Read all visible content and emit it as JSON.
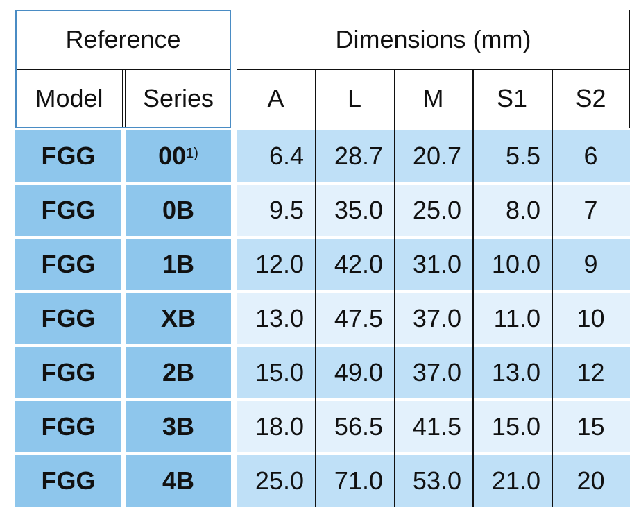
{
  "header": {
    "reference": "Reference",
    "dimensions": "Dimensions (mm)",
    "model": "Model",
    "series": "Series",
    "columns": [
      "A",
      "L",
      "M",
      "S1",
      "S2"
    ]
  },
  "rows": [
    {
      "model": "FGG",
      "series": "00",
      "note": "1)",
      "values": [
        "6.4",
        "28.7",
        "20.7",
        "5.5",
        "6"
      ]
    },
    {
      "model": "FGG",
      "series": "0B",
      "values": [
        "9.5",
        "35.0",
        "25.0",
        "8.0",
        "7"
      ]
    },
    {
      "model": "FGG",
      "series": "1B",
      "values": [
        "12.0",
        "42.0",
        "31.0",
        "10.0",
        "9"
      ]
    },
    {
      "model": "FGG",
      "series": "XB",
      "values": [
        "13.0",
        "47.5",
        "37.0",
        "11.0",
        "10"
      ]
    },
    {
      "model": "FGG",
      "series": "2B",
      "values": [
        "15.0",
        "49.0",
        "37.0",
        "13.0",
        "12"
      ]
    },
    {
      "model": "FGG",
      "series": "3B",
      "values": [
        "18.0",
        "56.5",
        "41.5",
        "15.0",
        "15"
      ]
    },
    {
      "model": "FGG",
      "series": "4B",
      "values": [
        "25.0",
        "71.0",
        "53.0",
        "21.0",
        "20"
      ]
    }
  ]
}
